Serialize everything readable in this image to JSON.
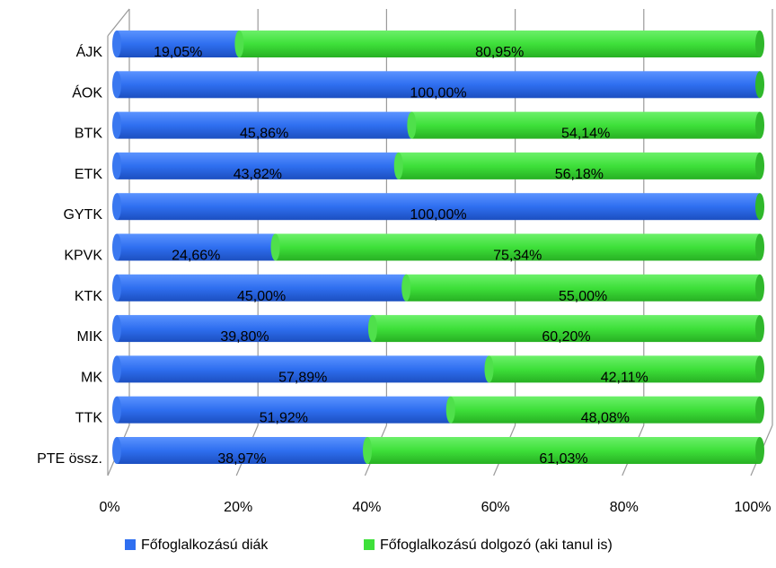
{
  "chart_data": {
    "type": "bar",
    "orientation": "horizontal",
    "stacked": "percent",
    "categories": [
      "ÁJK",
      "ÁOK",
      "BTK",
      "ETK",
      "GYTK",
      "KPVK",
      "KTK",
      "MIK",
      "MK",
      "TTK",
      "PTE össz."
    ],
    "series": [
      {
        "name": "Főfoglalkozású diák",
        "color": "#2f6ff0",
        "values": [
          19.05,
          100.0,
          45.86,
          43.82,
          100.0,
          24.66,
          45.0,
          39.8,
          57.89,
          51.92,
          38.97
        ],
        "labels": [
          "19,05%",
          "100,00%",
          "45,86%",
          "43,82%",
          "100,00%",
          "24,66%",
          "45,00%",
          "39,80%",
          "57,89%",
          "51,92%",
          "38,97%"
        ]
      },
      {
        "name": "Főfoglalkozású dolgozó (aki tanul is)",
        "color": "#3ee03a",
        "values": [
          80.95,
          0,
          54.14,
          56.18,
          0,
          75.34,
          55.0,
          60.2,
          42.11,
          48.08,
          61.03
        ],
        "labels": [
          "80,95%",
          "",
          "54,14%",
          "56,18%",
          "",
          "75,34%",
          "55,00%",
          "60,20%",
          "42,11%",
          "48,08%",
          "61,03%"
        ]
      }
    ],
    "xlim": [
      0,
      100
    ],
    "xticks": [
      "0%",
      "20%",
      "40%",
      "60%",
      "80%",
      "100%"
    ],
    "grid": true,
    "legend_position": "bottom"
  }
}
